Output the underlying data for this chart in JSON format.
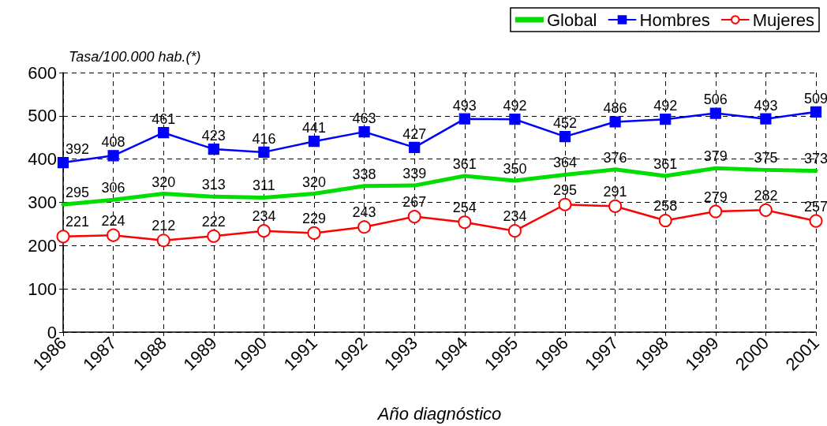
{
  "chart_data": {
    "type": "line",
    "xlabel": "Año diagnóstico",
    "ylabel": "Tasa/100.000 hab.(*)",
    "categories": [
      "1986",
      "1987",
      "1988",
      "1989",
      "1990",
      "1991",
      "1992",
      "1993",
      "1994",
      "1995",
      "1996",
      "1997",
      "1998",
      "1999",
      "2000",
      "2001"
    ],
    "series": [
      {
        "name": "Global",
        "color": "#00dd00",
        "marker": "none",
        "values": [
          295,
          306,
          320,
          313,
          311,
          320,
          338,
          339,
          361,
          350,
          364,
          376,
          361,
          379,
          375,
          373
        ]
      },
      {
        "name": "Hombres",
        "color": "#0000ff",
        "marker": "square",
        "values": [
          392,
          408,
          461,
          423,
          416,
          441,
          463,
          427,
          493,
          492,
          452,
          486,
          492,
          506,
          493,
          509
        ]
      },
      {
        "name": "Mujeres",
        "color": "#ff0000",
        "marker": "circle",
        "values": [
          221,
          224,
          212,
          222,
          234,
          229,
          243,
          267,
          254,
          234,
          295,
          291,
          258,
          279,
          282,
          257
        ]
      }
    ],
    "ylim": [
      0,
      600
    ],
    "yticks": [
      0,
      100,
      200,
      300,
      400,
      500,
      600
    ],
    "grid": true,
    "legend": "top right",
    "data_labels": true,
    "line_style": "solid"
  }
}
